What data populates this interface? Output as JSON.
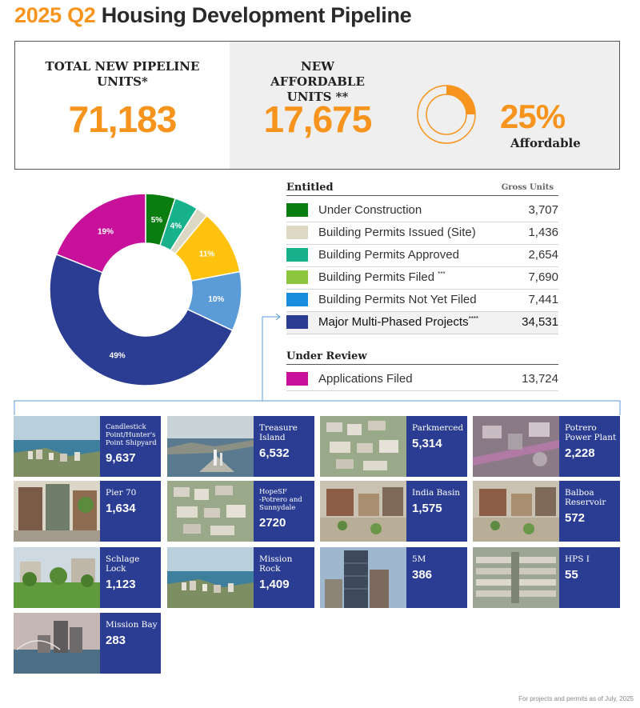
{
  "title": {
    "year": "2025 Q2",
    "rest": "Housing Development Pipeline"
  },
  "summary": {
    "total_label_1": "TOTAL NEW PIPELINE",
    "total_label_2": "UNITS*",
    "total_value": "71,183",
    "affordable_label_1": "NEW AFFORDABLE",
    "affordable_label_2": "UNITS **",
    "affordable_value": "17,675",
    "affordable_pct": "25%",
    "affordable_word": "Affordable",
    "affordable_fraction": 0.25
  },
  "colors": {
    "orange": "#f7941d",
    "under_construction": "#0a7d10",
    "permits_issued": "#ddd8c4",
    "permits_approved": "#17b28c",
    "permits_filed": "#8cc63e",
    "permits_not_yet_filed": "#1a8cdc",
    "major_multi_phased": "#2b3d93",
    "applications_filed": "#c8119a",
    "donut_approved_not_yet_filed": "#5b9bd8",
    "donut_filed": "#ffc20e",
    "card_panel": "#2b3d93"
  },
  "legend": {
    "entitled_heading": "Entitled",
    "gross_units_heading": "Gross Units",
    "review_heading": "Under Review",
    "entitled_rows": [
      {
        "label": "Under Construction",
        "sup": "",
        "value": "3,707"
      },
      {
        "label": "Building Permits Issued (Site)",
        "sup": "",
        "value": "1,436"
      },
      {
        "label": "Building Permits Approved",
        "sup": "",
        "value": "2,654"
      },
      {
        "label": "Building Permits Filed",
        "sup": "***",
        "value": "7,690"
      },
      {
        "label": "Building Permits Not Yet Filed",
        "sup": "",
        "value": "7,441"
      },
      {
        "label": "Major Multi-Phased Projects",
        "sup": "****",
        "value": "34,531"
      }
    ],
    "review_rows": [
      {
        "label": "Applications Filed",
        "sup": "",
        "value": "13,724"
      }
    ]
  },
  "chart_data": {
    "type": "pie",
    "donut": true,
    "slices": [
      {
        "label": "5%",
        "value": 5,
        "color": "#0a7d10"
      },
      {
        "label": "4%",
        "value": 4,
        "color": "#17b28c"
      },
      {
        "label": "",
        "value": 2,
        "color": "#ddd8c4"
      },
      {
        "label": "11%",
        "value": 11,
        "color": "#ffc20e"
      },
      {
        "label": "10%",
        "value": 10,
        "color": "#5b9bd8"
      },
      {
        "label": "49%",
        "value": 49,
        "color": "#2b3d93"
      },
      {
        "label": "19%",
        "value": 19,
        "color": "#c8119a"
      }
    ]
  },
  "projects": [
    {
      "name": "Candlestick\nPoint/Hunter's\nPoint Shipyard",
      "units": "9,637",
      "small": true,
      "scene": "waterfront"
    },
    {
      "name": "Treasure\nIsland",
      "units": "6,532",
      "small": false,
      "scene": "island"
    },
    {
      "name": "Parkmerced",
      "units": "5,314",
      "small": false,
      "scene": "aerial"
    },
    {
      "name": "Potrero\nPower Plant",
      "units": "2,228",
      "small": false,
      "scene": "industrial"
    },
    {
      "name": "Pier 70",
      "units": "1,634",
      "small": false,
      "scene": "street"
    },
    {
      "name": "HopeSF\n-Potrero and\nSunnydale",
      "units": "2720",
      "small": true,
      "scene": "aerial"
    },
    {
      "name": "India Basin",
      "units": "1,575",
      "small": false,
      "scene": "plaza"
    },
    {
      "name": "Balboa\nReservoir",
      "units": "572",
      "small": false,
      "scene": "plaza"
    },
    {
      "name": "Schlage\nLock",
      "units": "1,123",
      "small": false,
      "scene": "park"
    },
    {
      "name": "Mission\nRock",
      "units": "1,409",
      "small": false,
      "scene": "waterfront"
    },
    {
      "name": "5M",
      "units": "386",
      "small": false,
      "scene": "tower"
    },
    {
      "name": "HPS I",
      "units": "55",
      "small": false,
      "scene": "rows"
    },
    {
      "name": "Mission Bay",
      "units": "283",
      "small": false,
      "scene": "bay"
    }
  ],
  "footnote": "For projects and permits as of  July, 2025"
}
